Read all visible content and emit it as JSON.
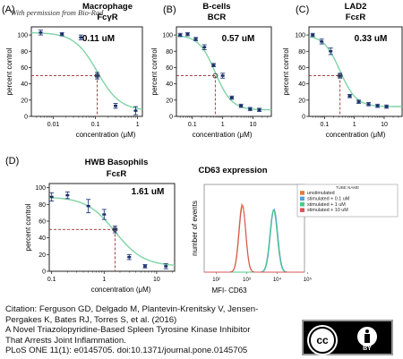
{
  "watermark": "With permission from Bio-Rad",
  "chart_data": [
    {
      "type": "scatter",
      "panel": "(A)",
      "title": "Macrophage",
      "subtitle": "FcγR",
      "ic50": "0.11 uM",
      "ylabel": "percent control",
      "xlabel": "concentration (μM)",
      "xscale": "log",
      "xlim": [
        0.003,
        1.3
      ],
      "ylim": [
        0,
        110
      ],
      "xticks": [
        "0.01",
        "0.1",
        "1"
      ],
      "yticks": [
        "0",
        "20",
        "40",
        "60",
        "80",
        "100"
      ],
      "ic50_x": 0.11,
      "x": [
        0.005,
        0.016,
        0.045,
        0.11,
        0.3,
        0.9
      ],
      "y": [
        103,
        101,
        97,
        50,
        13,
        7
      ],
      "err": [
        3,
        2,
        3,
        4,
        3,
        5
      ],
      "fit_color": "#7fd4a6"
    },
    {
      "type": "scatter",
      "panel": "(B)",
      "title": "B-cells",
      "subtitle": "BCR",
      "ic50": "0.57 uM",
      "ylabel": "percent control",
      "xlabel": "concentration (μM)",
      "xscale": "log",
      "xlim": [
        0.03,
        40
      ],
      "ylim": [
        0,
        110
      ],
      "xticks": [
        "0.1",
        "1",
        "10"
      ],
      "yticks": [
        "0",
        "20",
        "40",
        "60",
        "80",
        "100"
      ],
      "ic50_x": 0.57,
      "x": [
        0.04,
        0.07,
        0.13,
        0.25,
        0.5,
        1,
        2,
        4,
        8,
        16
      ],
      "y": [
        100,
        101,
        95,
        85,
        63,
        50,
        23,
        13,
        9,
        8
      ],
      "err": [
        2,
        2,
        2,
        3,
        2,
        3,
        2,
        2,
        2,
        2
      ],
      "fit_color": "#7fd4a6"
    },
    {
      "type": "scatter",
      "panel": "(C)",
      "title": "LAD2",
      "subtitle": "FcεR",
      "ic50": "0.33 uM",
      "ylabel": "percent control",
      "xlabel": "concentration (μM)",
      "xscale": "log",
      "xlim": [
        0.03,
        40
      ],
      "ylim": [
        0,
        110
      ],
      "xticks": [
        "0.1",
        "1",
        "10"
      ],
      "yticks": [
        "0",
        "20",
        "40",
        "60",
        "80",
        "100"
      ],
      "ic50_x": 0.33,
      "x": [
        0.04,
        0.08,
        0.16,
        0.33,
        0.7,
        1.4,
        3,
        6,
        12
      ],
      "y": [
        100,
        92,
        80,
        50,
        25,
        18,
        15,
        13,
        12
      ],
      "err": [
        2,
        3,
        4,
        3,
        2,
        2,
        2,
        2,
        2
      ],
      "fit_color": "#7fd4a6"
    },
    {
      "type": "scatter",
      "panel": "(D)",
      "title": "HWB Basophils",
      "subtitle": "FcεR",
      "ic50": "1.61 uM",
      "ylabel": "percent control",
      "xlabel": "concentration (μM)",
      "xscale": "log",
      "xlim": [
        0.09,
        22
      ],
      "ylim": [
        0,
        105
      ],
      "xticks": [
        "0.1",
        "1",
        "10"
      ],
      "yticks": [
        "0",
        "20",
        "40",
        "60",
        "80",
        "100"
      ],
      "ic50_x": 1.61,
      "x": [
        0.1,
        0.2,
        0.5,
        1.0,
        1.61,
        3,
        6,
        15
      ],
      "y": [
        89,
        91,
        78,
        68,
        50,
        17,
        6,
        6
      ],
      "err": [
        5,
        4,
        8,
        6,
        4,
        3,
        2,
        3
      ],
      "fit_color": "#7fd4a6"
    },
    {
      "type": "area",
      "title": "CD63 expression",
      "xlabel": "MFI- CD63",
      "ylabel": "number of events",
      "xticks": [
        "10²",
        "10³",
        "10⁴",
        "10⁵"
      ],
      "legend_title": "TUBE NAME",
      "legend_position": "top-right",
      "series": [
        {
          "name": "unstimulated",
          "color": "#e07a40",
          "peak_log": 2.85,
          "width": 0.11,
          "height": 0.78
        },
        {
          "name": "stimulated + 0.1 uM",
          "color": "#5a9fd6",
          "peak_log": 3.9,
          "width": 0.12,
          "height": 0.72
        },
        {
          "name": "stimulated + 1 uM",
          "color": "#4dc98a",
          "peak_log": 3.88,
          "width": 0.12,
          "height": 0.71
        },
        {
          "name": "stimulated + 10 uM",
          "color": "#d45555",
          "peak_log": 2.86,
          "width": 0.11,
          "height": 0.76
        }
      ]
    }
  ],
  "citation": [
    "Citation: Ferguson GD, Delgado M, Plantevin-Krenitsky V, Jensen-",
    "Pergakes K, Bates RJ, Torres S, et al. (2016)",
    "A Novel Triazolopyridine-Based Spleen Tyrosine Kinase Inhibitor",
    "That Arrests Joint Inflammation.",
    "PLoS ONE 11(1): e0145705. doi:10.1371/journal.pone.0145705"
  ],
  "license": {
    "cc_label": "cc",
    "by_label": "BY"
  }
}
